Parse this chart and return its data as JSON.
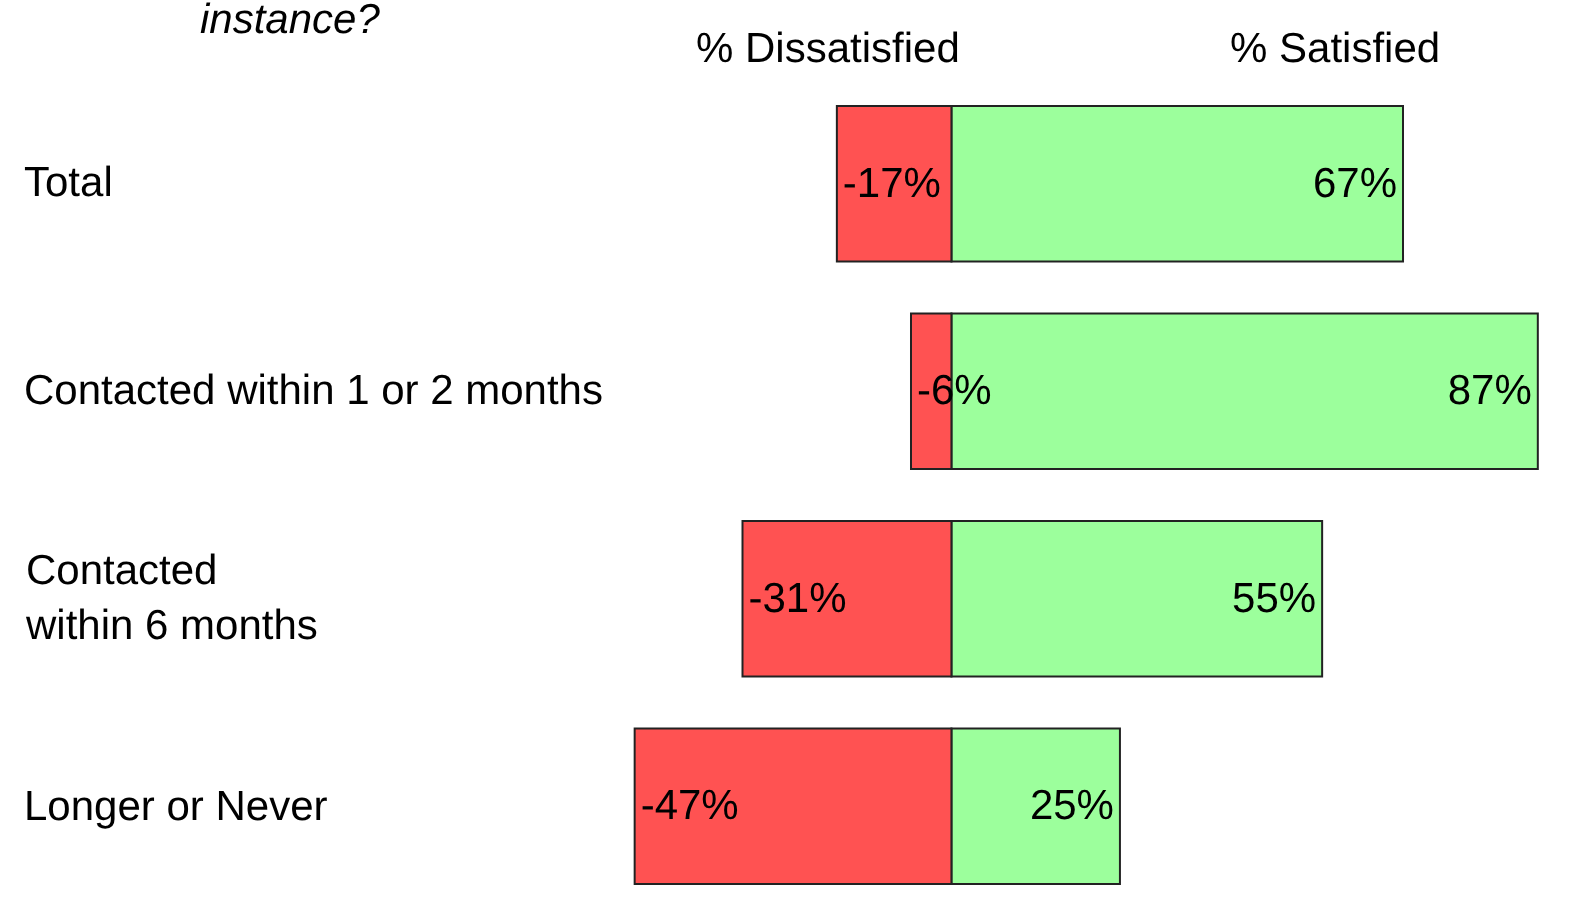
{
  "chart_data": {
    "type": "bar",
    "orientation": "horizontal",
    "stacked": true,
    "title": "instance?",
    "categories": [
      "Total",
      "Contacted within 1 or 2 months",
      "Contacted\nwithin 6 months",
      "Longer or Never"
    ],
    "series": [
      {
        "name": "% Dissatisfied",
        "color": "#ff5252",
        "values": [
          -17,
          -6,
          -31,
          -47
        ],
        "value_labels": [
          "-17%",
          "-6%",
          "-31%",
          "-47%"
        ]
      },
      {
        "name": "% Satisfied",
        "color": "#9cff9c",
        "values": [
          67,
          87,
          55,
          25
        ],
        "value_labels": [
          "67%",
          "87%",
          "55%",
          "25%"
        ]
      }
    ],
    "tick_labels": "y"
  }
}
